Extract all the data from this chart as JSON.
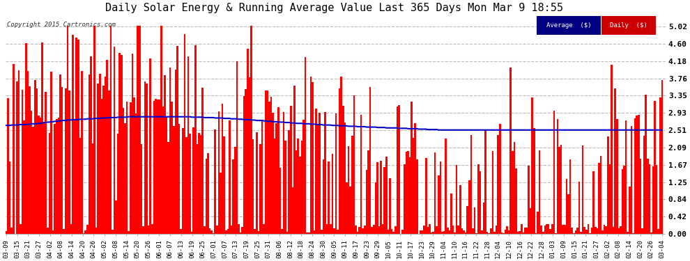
{
  "title": "Daily Solar Energy & Running Average Value Last 365 Days Mon Mar 9 18:55",
  "copyright": "Copyright 2015 Cartronics.com",
  "yticks": [
    0.0,
    0.42,
    0.84,
    1.25,
    1.67,
    2.09,
    2.51,
    2.93,
    3.35,
    3.76,
    4.18,
    4.6,
    5.02
  ],
  "ylim": [
    0.0,
    5.3
  ],
  "bar_color": "#ff0000",
  "avg_color": "#0000cc",
  "bg_color": "#ffffff",
  "plot_bg_color": "#ffffff",
  "grid_color": "#bbbbbb",
  "title_fontsize": 11,
  "legend_avg_color": "#000080",
  "legend_daily_color": "#cc0000",
  "x_tick_labels": [
    "03-09",
    "03-15",
    "03-21",
    "03-27",
    "04-02",
    "04-08",
    "04-14",
    "04-20",
    "04-26",
    "05-02",
    "05-08",
    "05-14",
    "05-20",
    "05-26",
    "06-01",
    "06-07",
    "06-13",
    "06-19",
    "06-25",
    "07-01",
    "07-07",
    "07-13",
    "07-19",
    "07-25",
    "07-31",
    "08-06",
    "08-12",
    "08-18",
    "08-24",
    "08-30",
    "09-05",
    "09-11",
    "09-17",
    "09-23",
    "09-29",
    "10-05",
    "10-11",
    "10-17",
    "10-23",
    "10-29",
    "11-04",
    "11-10",
    "11-16",
    "11-22",
    "11-28",
    "12-04",
    "12-10",
    "12-16",
    "12-22",
    "12-28",
    "01-03",
    "01-09",
    "01-15",
    "01-21",
    "01-27",
    "02-02",
    "02-08",
    "02-14",
    "02-20",
    "02-26",
    "03-04"
  ],
  "avg_line_values": [
    2.63,
    2.63,
    2.63,
    2.64,
    2.64,
    2.64,
    2.64,
    2.65,
    2.65,
    2.65,
    2.65,
    2.65,
    2.66,
    2.66,
    2.67,
    2.67,
    2.67,
    2.67,
    2.68,
    2.68,
    2.69,
    2.7,
    2.7,
    2.71,
    2.71,
    2.72,
    2.72,
    2.73,
    2.73,
    2.74,
    2.74,
    2.75,
    2.75,
    2.75,
    2.76,
    2.76,
    2.76,
    2.77,
    2.77,
    2.77,
    2.77,
    2.78,
    2.78,
    2.78,
    2.78,
    2.79,
    2.79,
    2.79,
    2.79,
    2.8,
    2.8,
    2.8,
    2.8,
    2.81,
    2.81,
    2.81,
    2.81,
    2.82,
    2.82,
    2.82,
    2.82,
    2.82,
    2.83,
    2.83,
    2.83,
    2.83,
    2.83,
    2.83,
    2.84,
    2.84,
    2.84,
    2.84,
    2.84,
    2.84,
    2.84,
    2.84,
    2.84,
    2.84,
    2.84,
    2.84,
    2.84,
    2.84,
    2.84,
    2.84,
    2.84,
    2.84,
    2.84,
    2.84,
    2.84,
    2.84,
    2.84,
    2.84,
    2.84,
    2.84,
    2.84,
    2.84,
    2.84,
    2.84,
    2.84,
    2.84,
    2.84,
    2.84,
    2.84,
    2.83,
    2.83,
    2.83,
    2.83,
    2.83,
    2.83,
    2.83,
    2.82,
    2.82,
    2.82,
    2.82,
    2.82,
    2.82,
    2.81,
    2.81,
    2.81,
    2.81,
    2.81,
    2.8,
    2.8,
    2.8,
    2.8,
    2.79,
    2.79,
    2.79,
    2.79,
    2.78,
    2.78,
    2.78,
    2.77,
    2.77,
    2.77,
    2.77,
    2.76,
    2.76,
    2.76,
    2.75,
    2.75,
    2.75,
    2.75,
    2.74,
    2.74,
    2.73,
    2.73,
    2.73,
    2.72,
    2.72,
    2.72,
    2.71,
    2.71,
    2.71,
    2.71,
    2.7,
    2.7,
    2.7,
    2.69,
    2.69,
    2.69,
    2.68,
    2.68,
    2.68,
    2.68,
    2.67,
    2.67,
    2.67,
    2.67,
    2.66,
    2.66,
    2.66,
    2.66,
    2.65,
    2.65,
    2.65,
    2.64,
    2.64,
    2.64,
    2.64,
    2.64,
    2.63,
    2.63,
    2.63,
    2.63,
    2.62,
    2.62,
    2.62,
    2.62,
    2.62,
    2.61,
    2.61,
    2.61,
    2.61,
    2.61,
    2.6,
    2.6,
    2.6,
    2.6,
    2.6,
    2.59,
    2.59,
    2.59,
    2.59,
    2.59,
    2.59,
    2.58,
    2.58,
    2.58,
    2.58,
    2.58,
    2.57,
    2.57,
    2.57,
    2.57,
    2.57,
    2.57,
    2.57,
    2.56,
    2.56,
    2.56,
    2.56,
    2.56,
    2.55,
    2.55,
    2.55,
    2.55,
    2.55,
    2.55,
    2.54,
    2.54,
    2.54,
    2.54,
    2.54,
    2.53,
    2.53,
    2.53,
    2.53,
    2.53,
    2.53,
    2.52,
    2.52,
    2.52,
    2.52,
    2.52,
    2.52,
    2.52,
    2.52,
    2.52,
    2.52,
    2.52,
    2.52,
    2.52,
    2.52,
    2.52,
    2.52,
    2.52,
    2.52,
    2.52,
    2.52,
    2.52,
    2.52,
    2.52,
    2.52,
    2.52,
    2.52,
    2.52,
    2.52,
    2.52,
    2.52,
    2.52,
    2.52,
    2.52,
    2.52,
    2.52,
    2.52,
    2.52,
    2.52,
    2.52,
    2.52,
    2.52,
    2.52,
    2.52,
    2.52,
    2.52,
    2.52,
    2.52,
    2.52,
    2.52,
    2.52,
    2.52,
    2.52,
    2.52,
    2.52,
    2.52,
    2.52,
    2.52,
    2.52,
    2.52,
    2.52,
    2.52,
    2.52,
    2.52,
    2.52,
    2.52,
    2.52,
    2.52,
    2.52,
    2.52,
    2.52,
    2.52,
    2.52,
    2.52,
    2.52,
    2.52,
    2.52,
    2.52,
    2.52,
    2.52,
    2.52,
    2.52,
    2.52,
    2.52,
    2.52,
    2.52,
    2.52,
    2.52,
    2.52,
    2.52,
    2.52,
    2.52,
    2.52,
    2.52,
    2.52,
    2.52,
    2.52,
    2.52,
    2.52,
    2.52,
    2.52,
    2.52,
    2.52,
    2.52,
    2.52,
    2.52,
    2.52,
    2.52,
    2.52,
    2.52,
    2.52,
    2.52,
    2.52,
    2.52,
    2.52,
    2.52,
    2.52,
    2.52,
    2.52,
    2.52,
    2.52,
    2.52,
    2.52,
    2.52,
    2.52,
    2.51
  ]
}
